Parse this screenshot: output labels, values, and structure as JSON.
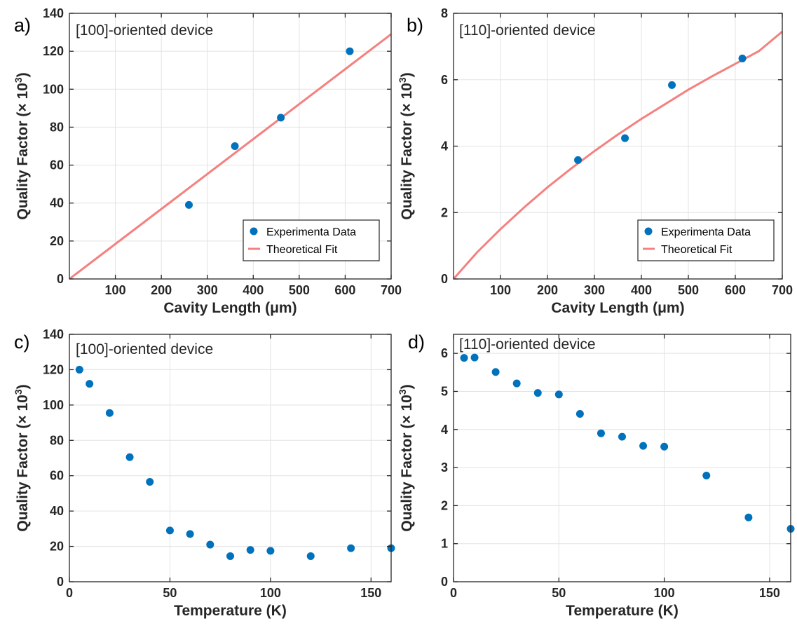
{
  "chart_data": [
    {
      "panel": "a)",
      "type": "scatter",
      "annotation": "[100]-oriented device",
      "xlabel": "Cavity Length (μm)",
      "ylabel": "Quality Factor (× 10",
      "ylabel_sup": "3",
      "ylabel_tail": ")",
      "xlim": [
        0,
        700
      ],
      "ylim": [
        0,
        140
      ],
      "xticks": [
        100,
        200,
        300,
        400,
        500,
        600,
        700
      ],
      "yticks": [
        0,
        20,
        40,
        60,
        80,
        100,
        120,
        140
      ],
      "grid": true,
      "legend": {
        "position": "bottom-right",
        "entries": [
          "Experimenta Data",
          "Theoretical Fit"
        ]
      },
      "series": [
        {
          "name": "Experimenta Data",
          "kind": "scatter",
          "color": "#0072BD",
          "x": [
            260,
            360,
            460,
            610
          ],
          "y": [
            39,
            70,
            85,
            120
          ]
        },
        {
          "name": "Theoretical Fit",
          "kind": "line",
          "color": "#F4817F",
          "x": [
            0,
            700
          ],
          "y": [
            0,
            129
          ]
        }
      ]
    },
    {
      "panel": "b)",
      "type": "scatter",
      "annotation": "[110]-oriented device",
      "xlabel": "Cavity Length (μm)",
      "ylabel": "Quality Factor (× 10",
      "ylabel_sup": "3",
      "ylabel_tail": ")",
      "xlim": [
        0,
        700
      ],
      "ylim": [
        0,
        8
      ],
      "xticks": [
        100,
        200,
        300,
        400,
        500,
        600,
        700
      ],
      "yticks": [
        0,
        2,
        4,
        6,
        8
      ],
      "grid": true,
      "legend": {
        "position": "bottom-right",
        "entries": [
          "Experimenta Data",
          "Theoretical Fit"
        ]
      },
      "series": [
        {
          "name": "Experimenta Data",
          "kind": "scatter",
          "color": "#0072BD",
          "x": [
            265,
            365,
            465,
            615
          ],
          "y": [
            3.58,
            4.24,
            5.84,
            6.64
          ]
        },
        {
          "name": "Theoretical Fit",
          "kind": "line",
          "color": "#F4817F",
          "x": [
            0,
            50,
            100,
            150,
            200,
            250,
            300,
            350,
            400,
            450,
            500,
            550,
            600,
            650,
            700
          ],
          "y": [
            0,
            0.8,
            1.5,
            2.15,
            2.76,
            3.32,
            3.85,
            4.35,
            4.82,
            5.26,
            5.7,
            6.1,
            6.48,
            6.86,
            7.45
          ]
        }
      ]
    },
    {
      "panel": "c)",
      "type": "scatter",
      "annotation": "[100]-oriented device",
      "xlabel": "Temperature (K)",
      "ylabel": "Quality Factor (× 10",
      "ylabel_sup": "3",
      "ylabel_tail": ")",
      "xlim": [
        0,
        160
      ],
      "ylim": [
        0,
        140
      ],
      "xticks": [
        0,
        50,
        100,
        150
      ],
      "yticks": [
        0,
        20,
        40,
        60,
        80,
        100,
        120,
        140
      ],
      "grid": true,
      "series": [
        {
          "kind": "scatter",
          "color": "#0072BD",
          "x": [
            5,
            10,
            20,
            30,
            40,
            50,
            60,
            70,
            80,
            90,
            100,
            120,
            140,
            160
          ],
          "y": [
            120,
            112,
            95.5,
            70.5,
            56.5,
            29,
            27,
            21,
            14.5,
            18,
            17.5,
            14.5,
            19,
            19
          ]
        }
      ]
    },
    {
      "panel": "d)",
      "type": "scatter",
      "annotation": "[110]-oriented device",
      "xlabel": "Temperature (K)",
      "ylabel": "Quality Factor (× 10",
      "ylabel_sup": "3",
      "ylabel_tail": ")",
      "xlim": [
        0,
        160
      ],
      "ylim": [
        0,
        6.5
      ],
      "xticks": [
        0,
        50,
        100,
        150
      ],
      "yticks": [
        0,
        1,
        2,
        3,
        4,
        5,
        6
      ],
      "grid": true,
      "series": [
        {
          "kind": "scatter",
          "color": "#0072BD",
          "x": [
            5,
            10,
            20,
            30,
            40,
            50,
            60,
            70,
            80,
            90,
            100,
            120,
            140,
            160
          ],
          "y": [
            5.88,
            5.89,
            5.51,
            5.21,
            4.96,
            4.92,
            4.41,
            3.9,
            3.81,
            3.57,
            3.55,
            2.79,
            1.69,
            1.39
          ]
        }
      ]
    }
  ]
}
